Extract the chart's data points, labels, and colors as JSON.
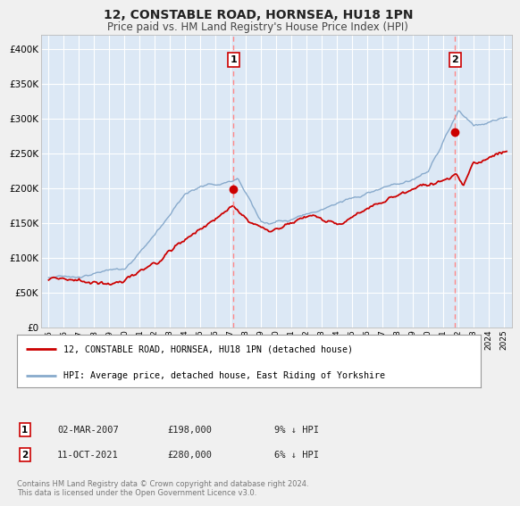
{
  "title": "12, CONSTABLE ROAD, HORNSEA, HU18 1PN",
  "subtitle": "Price paid vs. HM Land Registry's House Price Index (HPI)",
  "background_color": "#f0f0f0",
  "plot_bg_color": "#dce8f5",
  "grid_color": "#ffffff",
  "red_line_color": "#cc0000",
  "blue_line_color": "#88aacc",
  "marker_color": "#cc0000",
  "dashed_line_color": "#ff8888",
  "sale1_x": 2007.17,
  "sale1_y": 198000,
  "sale1_label": "1",
  "sale1_date": "02-MAR-2007",
  "sale1_price": "£198,000",
  "sale1_hpi": "9% ↓ HPI",
  "sale2_x": 2021.78,
  "sale2_y": 280000,
  "sale2_label": "2",
  "sale2_date": "11-OCT-2021",
  "sale2_price": "£280,000",
  "sale2_hpi": "6% ↓ HPI",
  "ylim": [
    0,
    420000
  ],
  "xlim": [
    1994.5,
    2025.5
  ],
  "yticks": [
    0,
    50000,
    100000,
    150000,
    200000,
    250000,
    300000,
    350000,
    400000
  ],
  "ytick_labels": [
    "£0",
    "£50K",
    "£100K",
    "£150K",
    "£200K",
    "£250K",
    "£300K",
    "£350K",
    "£400K"
  ],
  "xticks": [
    1995,
    1996,
    1997,
    1998,
    1999,
    2000,
    2001,
    2002,
    2003,
    2004,
    2005,
    2006,
    2007,
    2008,
    2009,
    2010,
    2011,
    2012,
    2013,
    2014,
    2015,
    2016,
    2017,
    2018,
    2019,
    2020,
    2021,
    2022,
    2023,
    2024,
    2025
  ],
  "legend1_label": "12, CONSTABLE ROAD, HORNSEA, HU18 1PN (detached house)",
  "legend2_label": "HPI: Average price, detached house, East Riding of Yorkshire",
  "footer": "Contains HM Land Registry data © Crown copyright and database right 2024.\nThis data is licensed under the Open Government Licence v3.0."
}
